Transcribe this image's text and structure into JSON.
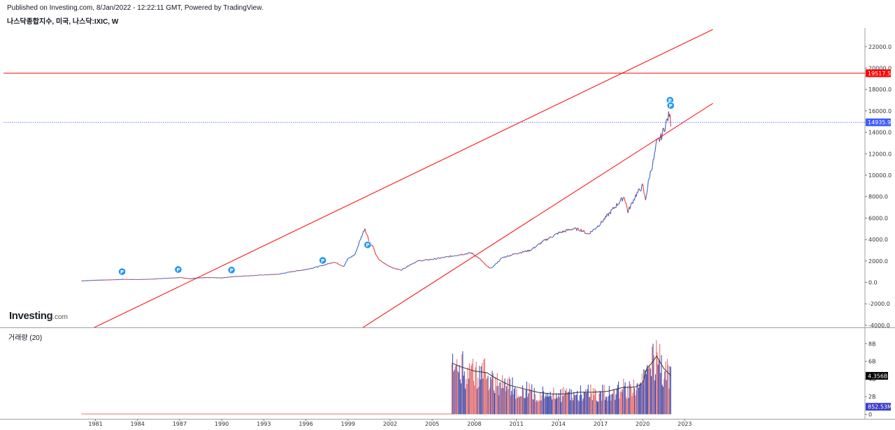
{
  "header": {
    "published": "Published on Investing.com, 8/Jan/2022 - 12:22:11 GMT, Powered by TradingView.",
    "symbol": "나스닥종합지수, 미국, 나스닥:IXIC, W"
  },
  "volume_panel": {
    "title": "거래량 (20)"
  },
  "logo": {
    "main": "Investing",
    "suffix": ".com"
  },
  "colors": {
    "trend_line": "#ff0000",
    "current_price_line": "#3d5afe",
    "current_price_tag": "#3d5afe",
    "level_tag": "#ff0000",
    "candle_up": "#3366cc",
    "candle_down": "#e53935",
    "volume_up": "#3f51b5",
    "volume_down": "#e57373",
    "volume_ma": "#333333",
    "marker": "#2196f3",
    "volume_tag": "#000000",
    "volume_current_tag": "#3d3dc8"
  },
  "chart_data": [
    {
      "type": "line",
      "title": "나스닥종합지수, 미국, 나스닥:IXIC, W",
      "x_ticks": [
        "1981",
        "1984",
        "1987",
        "1990",
        "1993",
        "1996",
        "1999",
        "2002",
        "2005",
        "2008",
        "2011",
        "2014",
        "2017",
        "2020",
        "2023"
      ],
      "y_ticks": [
        "22000.0",
        "20000.0",
        "18000.0",
        "16000.0",
        "14000.0",
        "12000.0",
        "10000.0",
        "8000.0",
        "6000.0",
        "4000.0",
        "2000.0",
        "0.0",
        "-2000.0",
        "-4000.0"
      ],
      "ylim": [
        -4000,
        23500
      ],
      "xlim": [
        1980.3,
        2025.5
      ],
      "series": [
        {
          "x": [
            1980.0,
            1981.0,
            1982.0,
            1983.0,
            1984.0,
            1985.0,
            1986.0,
            1987.0,
            1987.8,
            1988.0,
            1989.0,
            1990.0,
            1991.0,
            1992.0,
            1993.0,
            1994.0,
            1995.0,
            1996.0,
            1997.0,
            1998.0,
            1998.7,
            1999.0,
            1999.5,
            1999.9,
            2000.2,
            2000.5,
            2000.8,
            2001.0,
            2001.3,
            2001.8,
            2002.3,
            2002.8,
            2003.5,
            2004.0,
            2005.0,
            2006.0,
            2007.0,
            2007.8,
            2008.3,
            2008.9,
            2009.2,
            2010.0,
            2011.0,
            2012.0,
            2013.0,
            2014.0,
            2015.0,
            2015.6,
            2016.1,
            2016.5,
            2017.0,
            2018.0,
            2018.7,
            2018.95,
            2019.5,
            2020.0,
            2020.2,
            2020.5,
            2020.8,
            2021.0,
            2021.3,
            2021.6,
            2021.9,
            2022.0
          ],
          "y": [
            130,
            200,
            230,
            280,
            260,
            300,
            380,
            450,
            330,
            380,
            450,
            420,
            550,
            620,
            700,
            750,
            1000,
            1200,
            1500,
            1900,
            1500,
            2200,
            2600,
            4069,
            5048,
            3900,
            3300,
            2500,
            2000,
            1600,
            1300,
            1150,
            1700,
            2000,
            2150,
            2350,
            2600,
            2750,
            2300,
            1500,
            1300,
            2300,
            2700,
            3000,
            3900,
            4600,
            5000,
            4900,
            4500,
            4900,
            5500,
            7000,
            8000,
            6600,
            8100,
            9000,
            7700,
            10000,
            11500,
            13000,
            13500,
            14600,
            15700,
            14935.9
          ]
        }
      ],
      "trend_lines": [
        {
          "x": [
            1980.3,
            2025.0
          ],
          "y": [
            -4600,
            23600
          ]
        },
        {
          "x": [
            1999.6,
            2025.0
          ],
          "y": [
            -4600,
            16700
          ]
        }
      ],
      "horizontal_levels": [
        {
          "value": 19517.5,
          "label": "19517.5"
        },
        {
          "value": 14935.9,
          "label": "14935.9"
        }
      ],
      "markers": [
        {
          "x": 1982.9,
          "y": 1000,
          "label": "P"
        },
        {
          "x": 1986.9,
          "y": 1200,
          "label": "P"
        },
        {
          "x": 1990.7,
          "y": 1150,
          "label": "P"
        },
        {
          "x": 1997.2,
          "y": 2050,
          "label": "P"
        },
        {
          "x": 2000.4,
          "y": 3500,
          "label": "P"
        },
        {
          "x": 2021.95,
          "y": 17000,
          "label": "P"
        },
        {
          "x": 2022.0,
          "y": 16500,
          "label": "P"
        }
      ]
    },
    {
      "type": "bar",
      "title": "거래량 (20)",
      "y_ticks": [
        "8B",
        "6B",
        "4B",
        "2B",
        "0"
      ],
      "ylim": [
        0,
        9300000000
      ],
      "volume_start_x": 2006.4,
      "volume_x": [
        2006.4,
        2007.0,
        2008.0,
        2008.9,
        2009.5,
        2010.5,
        2011.5,
        2012.5,
        2013.5,
        2014.5,
        2015.5,
        2016.5,
        2017.5,
        2018.5,
        2019.5,
        2020.0,
        2020.3,
        2020.6,
        2021.0,
        2021.5,
        2022.0
      ],
      "volume_ma": [
        5800000000,
        5400000000,
        4900000000,
        4700000000,
        4100000000,
        3300000000,
        2900000000,
        2500000000,
        2300000000,
        2300000000,
        2500000000,
        2500000000,
        2600000000,
        3000000000,
        3100000000,
        3500000000,
        5200000000,
        5700000000,
        6600000000,
        5200000000,
        4400000000
      ],
      "tags": [
        {
          "value": 4356000000,
          "label": "4.356B"
        },
        {
          "value": 852530000,
          "label": "852.53M"
        }
      ]
    }
  ]
}
